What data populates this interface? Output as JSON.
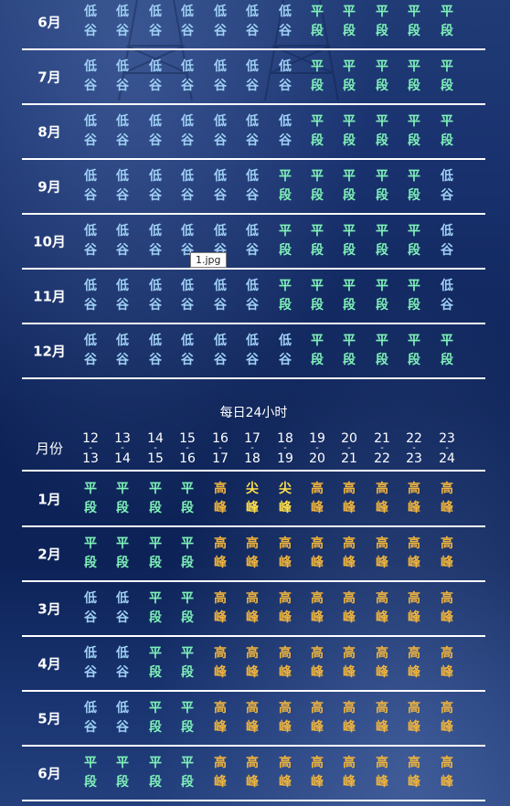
{
  "tooltip": "1.jpg",
  "section_top": {
    "rows": [
      {
        "month": "6月",
        "cells": [
          "低谷",
          "低谷",
          "低谷",
          "低谷",
          "低谷",
          "低谷",
          "低谷",
          "平段",
          "平段",
          "平段",
          "平段",
          "平段"
        ]
      },
      {
        "month": "7月",
        "cells": [
          "低谷",
          "低谷",
          "低谷",
          "低谷",
          "低谷",
          "低谷",
          "低谷",
          "平段",
          "平段",
          "平段",
          "平段",
          "平段"
        ]
      },
      {
        "month": "8月",
        "cells": [
          "低谷",
          "低谷",
          "低谷",
          "低谷",
          "低谷",
          "低谷",
          "低谷",
          "平段",
          "平段",
          "平段",
          "平段",
          "平段"
        ]
      },
      {
        "month": "9月",
        "cells": [
          "低谷",
          "低谷",
          "低谷",
          "低谷",
          "低谷",
          "低谷",
          "平段",
          "平段",
          "平段",
          "平段",
          "平段",
          "低谷"
        ]
      },
      {
        "month": "10月",
        "cells": [
          "低谷",
          "低谷",
          "低谷",
          "低谷",
          "低谷",
          "低谷",
          "平段",
          "平段",
          "平段",
          "平段",
          "平段",
          "低谷"
        ]
      },
      {
        "month": "11月",
        "cells": [
          "低谷",
          "低谷",
          "低谷",
          "低谷",
          "低谷",
          "低谷",
          "平段",
          "平段",
          "平段",
          "平段",
          "平段",
          "低谷"
        ]
      },
      {
        "month": "12月",
        "cells": [
          "低谷",
          "低谷",
          "低谷",
          "低谷",
          "低谷",
          "低谷",
          "低谷",
          "平段",
          "平段",
          "平段",
          "平段",
          "平段"
        ]
      }
    ]
  },
  "section_bottom": {
    "title": "每日24小时",
    "month_header": "月份",
    "hours": [
      [
        "12",
        "13"
      ],
      [
        "13",
        "14"
      ],
      [
        "14",
        "15"
      ],
      [
        "15",
        "16"
      ],
      [
        "16",
        "17"
      ],
      [
        "17",
        "18"
      ],
      [
        "18",
        "19"
      ],
      [
        "19",
        "20"
      ],
      [
        "20",
        "21"
      ],
      [
        "21",
        "22"
      ],
      [
        "22",
        "23"
      ],
      [
        "23",
        "24"
      ]
    ],
    "rows": [
      {
        "month": "1月",
        "cells": [
          "平段",
          "平段",
          "平段",
          "平段",
          "高峰",
          "尖峰",
          "尖峰",
          "高峰",
          "高峰",
          "高峰",
          "高峰",
          "高峰"
        ]
      },
      {
        "month": "2月",
        "cells": [
          "平段",
          "平段",
          "平段",
          "平段",
          "高峰",
          "高峰",
          "高峰",
          "高峰",
          "高峰",
          "高峰",
          "高峰",
          "高峰"
        ]
      },
      {
        "month": "3月",
        "cells": [
          "低谷",
          "低谷",
          "平段",
          "平段",
          "高峰",
          "高峰",
          "高峰",
          "高峰",
          "高峰",
          "高峰",
          "高峰",
          "高峰"
        ]
      },
      {
        "month": "4月",
        "cells": [
          "低谷",
          "低谷",
          "平段",
          "平段",
          "高峰",
          "高峰",
          "高峰",
          "高峰",
          "高峰",
          "高峰",
          "高峰",
          "高峰"
        ]
      },
      {
        "month": "5月",
        "cells": [
          "低谷",
          "低谷",
          "平段",
          "平段",
          "高峰",
          "高峰",
          "高峰",
          "高峰",
          "高峰",
          "高峰",
          "高峰",
          "高峰"
        ]
      },
      {
        "month": "6月",
        "cells": [
          "平段",
          "平段",
          "平段",
          "平段",
          "高峰",
          "高峰",
          "高峰",
          "高峰",
          "高峰",
          "高峰",
          "高峰",
          "高峰"
        ]
      }
    ]
  },
  "colors": {
    "低谷": "#9fd0f4",
    "平段": "#7ff2b8",
    "高峰": "#f0b43c",
    "尖峰": "#ffe04a"
  }
}
